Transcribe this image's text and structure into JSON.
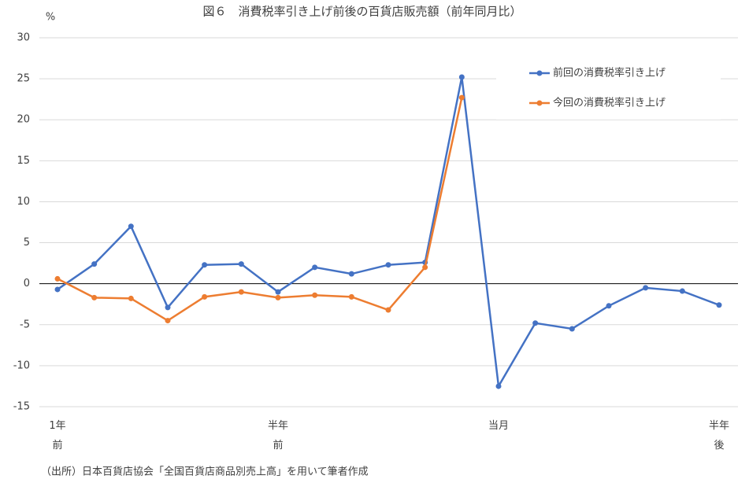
{
  "chart_data": {
    "type": "line",
    "title": "図６　消費税率引き上げ前後の百貨店販売額（前年同月比）",
    "y_unit": "%",
    "note": "（出所）日本百貨店協会「全国百貨店商品別売上高」を用いて筆者作成",
    "categories": [
      "1年\n前",
      null,
      null,
      null,
      null,
      null,
      "半年\n前",
      null,
      null,
      null,
      null,
      null,
      "当月",
      null,
      null,
      null,
      null,
      null,
      "半年\n後"
    ],
    "series": [
      {
        "name": "前回の消費税率引き上げ",
        "color": "#4472c4",
        "values": [
          -0.7,
          2.4,
          7.0,
          -2.9,
          2.3,
          2.4,
          -1.0,
          2.0,
          1.2,
          2.3,
          2.6,
          25.2,
          -12.5,
          -4.8,
          -5.5,
          -2.7,
          -0.5,
          -0.9,
          -2.6
        ]
      },
      {
        "name": "今回の消費税率引き上げ",
        "color": "#ed7d31",
        "values": [
          0.6,
          -1.7,
          -1.8,
          -4.5,
          -1.6,
          -1.0,
          -1.7,
          -1.4,
          -1.6,
          -3.2,
          2.0,
          22.7,
          null,
          null,
          null,
          null,
          null,
          null,
          null
        ]
      }
    ],
    "ylim": [
      -15,
      30
    ],
    "yticks": [
      -15,
      -10,
      -5,
      0,
      5,
      10,
      15,
      20,
      25,
      30
    ],
    "grid": true,
    "legend": "upper right"
  }
}
